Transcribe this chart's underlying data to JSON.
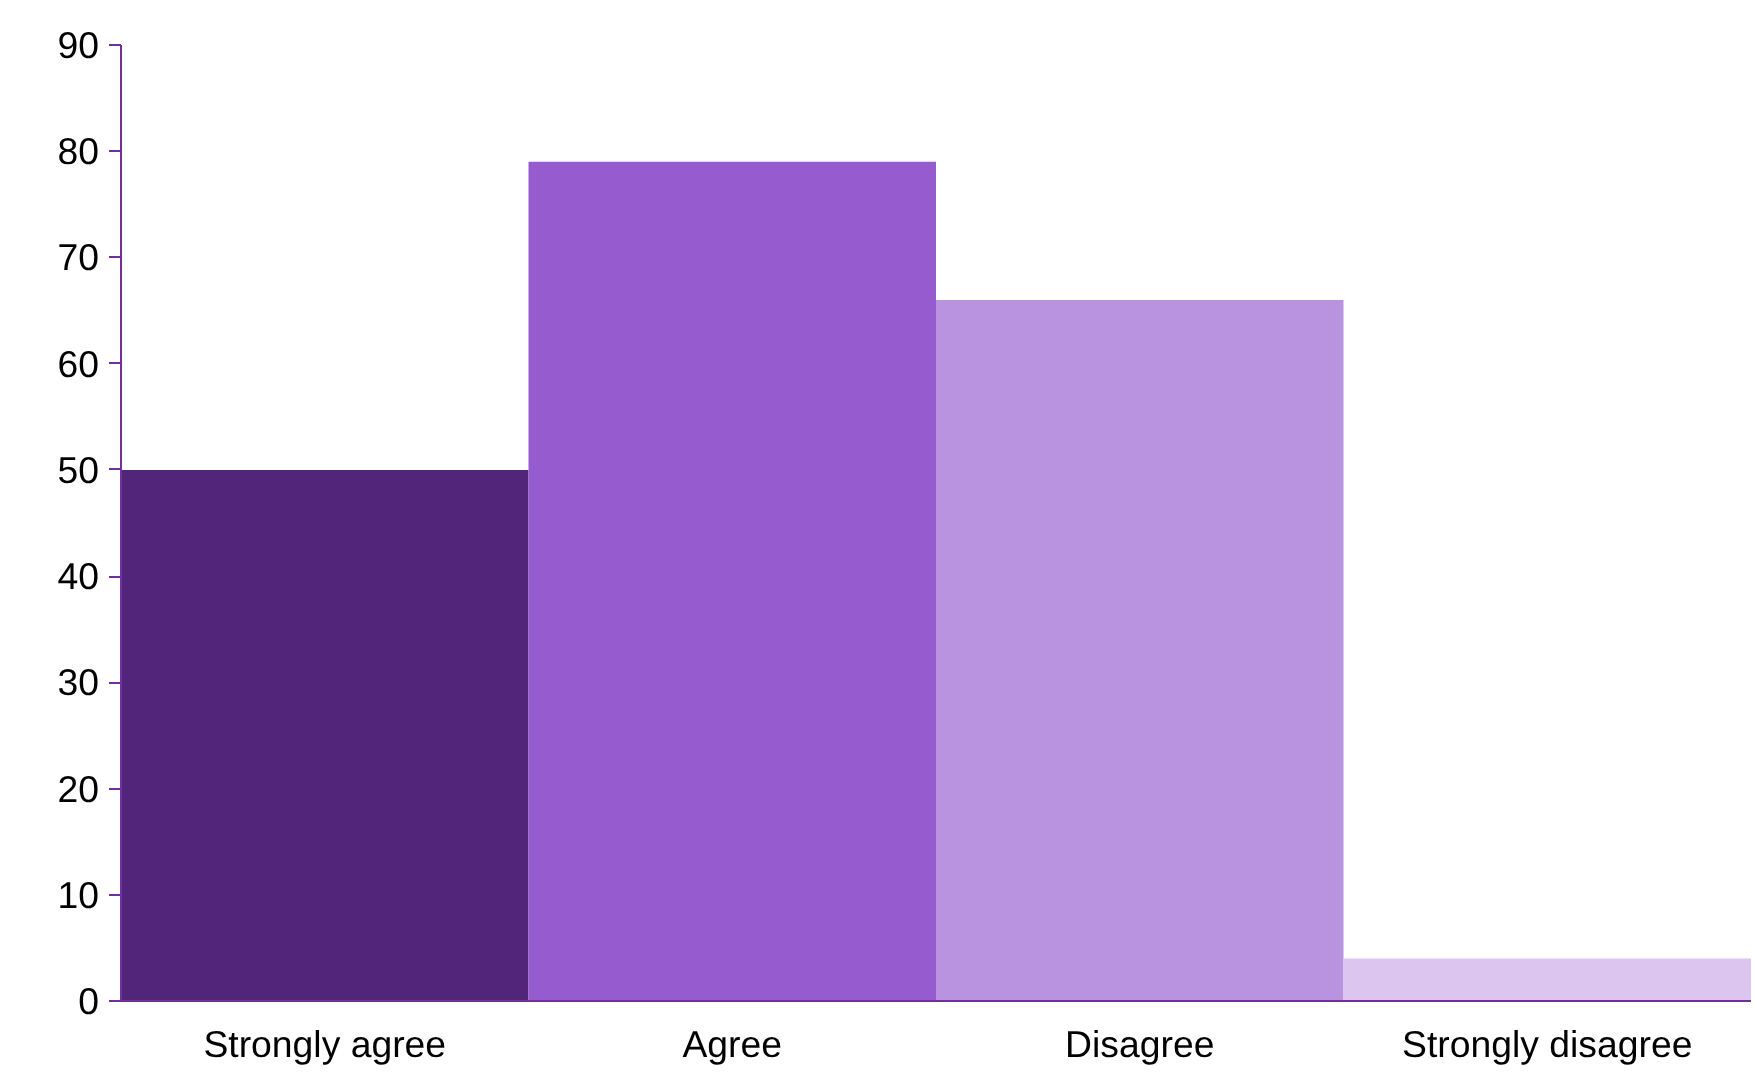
{
  "chart_data": {
    "type": "bar",
    "categories": [
      "Strongly agree",
      "Agree",
      "Disagree",
      "Strongly disagree"
    ],
    "values": [
      50,
      79,
      66,
      4
    ],
    "colors": [
      "#52247a",
      "#965ccf",
      "#ba93e0",
      "#dcc6ef"
    ],
    "ylim": [
      0,
      90
    ],
    "yticks": [
      0,
      10,
      20,
      30,
      40,
      50,
      60,
      70,
      80,
      90
    ],
    "grid": false
  }
}
